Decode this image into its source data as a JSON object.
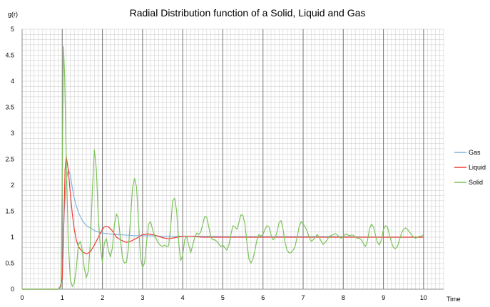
{
  "chart_data": {
    "type": "line",
    "title": "Radial Distribution function of a Solid, Liquid and Gas",
    "xlabel": "Time",
    "ylabel": "g(r)",
    "xlim": [
      0,
      10.5
    ],
    "ylim": [
      0,
      5
    ],
    "xticks": [
      0,
      1,
      2,
      3,
      4,
      5,
      6,
      7,
      8,
      9,
      10
    ],
    "yticks": [
      0,
      0.5,
      1,
      1.5,
      2,
      2.5,
      3,
      3.5,
      4,
      4.5,
      5
    ],
    "x_major_grid": [
      1,
      2,
      3,
      4,
      5,
      6,
      7,
      8,
      9,
      10
    ],
    "x_minor_step": 0.1,
    "y_minor_step": 0.1,
    "grid": true,
    "legend_position": "right",
    "colors": {
      "Gas": "#7fb6e0",
      "Liquid": "#ee3b30",
      "Solid": "#7cc35a",
      "grid_major": "#7f7f7f",
      "grid_minor": "#c8c8c8",
      "axis": "#8c8c8c"
    },
    "series": [
      {
        "name": "Gas",
        "color": "#7fb6e0",
        "points": [
          [
            0,
            0
          ],
          [
            0.9,
            0
          ],
          [
            0.95,
            0.02
          ],
          [
            1.0,
            0.3
          ],
          [
            1.05,
            1.5
          ],
          [
            1.1,
            2.1
          ],
          [
            1.15,
            2.3
          ],
          [
            1.2,
            2.2
          ],
          [
            1.25,
            1.95
          ],
          [
            1.3,
            1.75
          ],
          [
            1.35,
            1.6
          ],
          [
            1.4,
            1.48
          ],
          [
            1.5,
            1.32
          ],
          [
            1.6,
            1.22
          ],
          [
            1.7,
            1.18
          ],
          [
            1.8,
            1.13
          ],
          [
            1.9,
            1.1
          ],
          [
            2.0,
            1.08
          ],
          [
            2.2,
            1.06
          ],
          [
            2.4,
            1.05
          ],
          [
            2.6,
            1.04
          ],
          [
            2.8,
            1.03
          ],
          [
            3.0,
            1.03
          ],
          [
            3.5,
            1.02
          ],
          [
            4.0,
            1.02
          ],
          [
            4.5,
            1.02
          ],
          [
            5.0,
            1.01
          ],
          [
            6.0,
            1.01
          ],
          [
            7.0,
            1.01
          ],
          [
            8.0,
            1.01
          ],
          [
            9.0,
            1.0
          ],
          [
            10.0,
            1.0
          ]
        ]
      },
      {
        "name": "Liquid",
        "color": "#ee3b30",
        "points": [
          [
            0,
            0
          ],
          [
            0.9,
            0
          ],
          [
            0.95,
            0.05
          ],
          [
            1.0,
            0.2
          ],
          [
            1.03,
            1.0
          ],
          [
            1.07,
            2.3
          ],
          [
            1.1,
            2.55
          ],
          [
            1.15,
            2.3
          ],
          [
            1.2,
            1.85
          ],
          [
            1.25,
            1.45
          ],
          [
            1.3,
            1.15
          ],
          [
            1.35,
            0.95
          ],
          [
            1.4,
            0.82
          ],
          [
            1.5,
            0.72
          ],
          [
            1.6,
            0.68
          ],
          [
            1.7,
            0.72
          ],
          [
            1.8,
            0.85
          ],
          [
            1.9,
            1.0
          ],
          [
            2.0,
            1.15
          ],
          [
            2.05,
            1.2
          ],
          [
            2.15,
            1.2
          ],
          [
            2.25,
            1.12
          ],
          [
            2.35,
            1.0
          ],
          [
            2.5,
            0.93
          ],
          [
            2.6,
            0.9
          ],
          [
            2.7,
            0.92
          ],
          [
            2.85,
            0.98
          ],
          [
            3.0,
            1.05
          ],
          [
            3.15,
            1.06
          ],
          [
            3.3,
            1.04
          ],
          [
            3.5,
            0.99
          ],
          [
            3.65,
            0.97
          ],
          [
            3.8,
            0.99
          ],
          [
            4.0,
            1.02
          ],
          [
            4.2,
            1.02
          ],
          [
            4.5,
            1.0
          ],
          [
            5.0,
            1.0
          ],
          [
            6.0,
            1.0
          ],
          [
            7.0,
            1.0
          ],
          [
            8.0,
            1.0
          ],
          [
            9.0,
            1.0
          ],
          [
            10.0,
            1.0
          ]
        ]
      },
      {
        "name": "Solid",
        "color": "#7cc35a",
        "points": [
          [
            0,
            0
          ],
          [
            0.9,
            0
          ],
          [
            0.97,
            0.05
          ],
          [
            1.0,
            2.3
          ],
          [
            1.03,
            4.67
          ],
          [
            1.06,
            4.1
          ],
          [
            1.1,
            2.5
          ],
          [
            1.15,
            0.9
          ],
          [
            1.2,
            0.2
          ],
          [
            1.25,
            0.05
          ],
          [
            1.3,
            0.12
          ],
          [
            1.35,
            0.4
          ],
          [
            1.4,
            0.85
          ],
          [
            1.45,
            0.92
          ],
          [
            1.5,
            0.75
          ],
          [
            1.55,
            0.4
          ],
          [
            1.6,
            0.22
          ],
          [
            1.65,
            0.35
          ],
          [
            1.7,
            0.9
          ],
          [
            1.75,
            1.9
          ],
          [
            1.8,
            2.68
          ],
          [
            1.85,
            2.3
          ],
          [
            1.9,
            1.35
          ],
          [
            1.95,
            0.8
          ],
          [
            2.0,
            0.52
          ],
          [
            2.05,
            0.9
          ],
          [
            2.1,
            0.97
          ],
          [
            2.15,
            0.75
          ],
          [
            2.2,
            0.62
          ],
          [
            2.25,
            0.8
          ],
          [
            2.3,
            1.25
          ],
          [
            2.35,
            1.45
          ],
          [
            2.4,
            1.35
          ],
          [
            2.45,
            0.95
          ],
          [
            2.5,
            0.6
          ],
          [
            2.55,
            0.5
          ],
          [
            2.6,
            0.52
          ],
          [
            2.65,
            0.8
          ],
          [
            2.7,
            1.35
          ],
          [
            2.75,
            1.95
          ],
          [
            2.8,
            2.13
          ],
          [
            2.85,
            1.97
          ],
          [
            2.9,
            1.3
          ],
          [
            2.95,
            0.6
          ],
          [
            3.0,
            0.42
          ],
          [
            3.05,
            0.5
          ],
          [
            3.1,
            0.9
          ],
          [
            3.15,
            1.25
          ],
          [
            3.2,
            1.3
          ],
          [
            3.25,
            1.15
          ],
          [
            3.3,
            1.02
          ],
          [
            3.35,
            0.95
          ],
          [
            3.4,
            0.88
          ],
          [
            3.45,
            0.84
          ],
          [
            3.5,
            0.82
          ],
          [
            3.55,
            0.85
          ],
          [
            3.6,
            0.82
          ],
          [
            3.65,
            0.83
          ],
          [
            3.7,
            1.2
          ],
          [
            3.75,
            1.7
          ],
          [
            3.8,
            1.75
          ],
          [
            3.85,
            1.5
          ],
          [
            3.9,
            0.9
          ],
          [
            3.95,
            0.55
          ],
          [
            4.0,
            0.65
          ],
          [
            4.05,
            0.95
          ],
          [
            4.1,
            1.02
          ],
          [
            4.15,
            0.85
          ],
          [
            4.2,
            0.7
          ],
          [
            4.25,
            0.85
          ],
          [
            4.3,
            1.0
          ],
          [
            4.35,
            1.08
          ],
          [
            4.4,
            1.05
          ],
          [
            4.45,
            1.1
          ],
          [
            4.5,
            1.25
          ],
          [
            4.55,
            1.4
          ],
          [
            4.6,
            1.38
          ],
          [
            4.65,
            1.2
          ],
          [
            4.7,
            1.0
          ],
          [
            4.75,
            0.95
          ],
          [
            4.8,
            0.95
          ],
          [
            4.85,
            0.92
          ],
          [
            4.9,
            0.87
          ],
          [
            4.95,
            0.82
          ],
          [
            5.0,
            0.85
          ],
          [
            5.05,
            0.8
          ],
          [
            5.1,
            0.75
          ],
          [
            5.15,
            0.85
          ],
          [
            5.2,
            1.05
          ],
          [
            5.25,
            1.22
          ],
          [
            5.3,
            1.2
          ],
          [
            5.35,
            1.15
          ],
          [
            5.4,
            1.28
          ],
          [
            5.45,
            1.43
          ],
          [
            5.5,
            1.42
          ],
          [
            5.55,
            1.25
          ],
          [
            5.6,
            0.9
          ],
          [
            5.65,
            0.58
          ],
          [
            5.7,
            0.5
          ],
          [
            5.75,
            0.58
          ],
          [
            5.8,
            0.75
          ],
          [
            5.85,
            0.95
          ],
          [
            5.9,
            1.05
          ],
          [
            5.95,
            1.02
          ],
          [
            6.0,
            1.05
          ],
          [
            6.05,
            1.15
          ],
          [
            6.1,
            1.22
          ],
          [
            6.15,
            1.2
          ],
          [
            6.2,
            1.05
          ],
          [
            6.25,
            0.95
          ],
          [
            6.3,
            0.98
          ],
          [
            6.35,
            1.1
          ],
          [
            6.4,
            1.28
          ],
          [
            6.45,
            1.32
          ],
          [
            6.5,
            1.15
          ],
          [
            6.55,
            0.9
          ],
          [
            6.6,
            0.75
          ],
          [
            6.65,
            0.7
          ],
          [
            6.7,
            0.7
          ],
          [
            6.75,
            0.75
          ],
          [
            6.8,
            0.82
          ],
          [
            6.85,
            1.0
          ],
          [
            6.9,
            1.2
          ],
          [
            6.95,
            1.3
          ],
          [
            7.0,
            1.25
          ],
          [
            7.05,
            1.2
          ],
          [
            7.1,
            1.12
          ],
          [
            7.15,
            1.0
          ],
          [
            7.2,
            0.92
          ],
          [
            7.25,
            0.95
          ],
          [
            7.3,
            1.0
          ],
          [
            7.35,
            1.05
          ],
          [
            7.4,
            1.0
          ],
          [
            7.45,
            0.92
          ],
          [
            7.5,
            0.86
          ],
          [
            7.55,
            0.9
          ],
          [
            7.6,
            0.95
          ],
          [
            7.65,
            1.02
          ],
          [
            7.7,
            1.03
          ],
          [
            7.75,
            1.05
          ],
          [
            7.8,
            1.07
          ],
          [
            7.85,
            1.05
          ],
          [
            7.9,
            1.0
          ],
          [
            7.95,
            0.98
          ],
          [
            8.0,
            1.02
          ],
          [
            8.05,
            1.06
          ],
          [
            8.1,
            1.05
          ],
          [
            8.15,
            1.03
          ],
          [
            8.2,
            1.04
          ],
          [
            8.25,
            1.04
          ],
          [
            8.3,
            1.0
          ],
          [
            8.35,
            0.98
          ],
          [
            8.4,
            0.98
          ],
          [
            8.45,
            0.95
          ],
          [
            8.5,
            0.88
          ],
          [
            8.55,
            0.82
          ],
          [
            8.6,
            0.92
          ],
          [
            8.65,
            1.15
          ],
          [
            8.7,
            1.25
          ],
          [
            8.75,
            1.2
          ],
          [
            8.8,
            1.05
          ],
          [
            8.85,
            0.9
          ],
          [
            8.9,
            0.85
          ],
          [
            8.95,
            0.95
          ],
          [
            9.0,
            1.15
          ],
          [
            9.05,
            1.22
          ],
          [
            9.1,
            1.2
          ],
          [
            9.15,
            1.05
          ],
          [
            9.2,
            0.9
          ],
          [
            9.25,
            0.8
          ],
          [
            9.3,
            0.78
          ],
          [
            9.35,
            0.82
          ],
          [
            9.4,
            0.95
          ],
          [
            9.45,
            1.08
          ],
          [
            9.5,
            1.15
          ],
          [
            9.55,
            1.18
          ],
          [
            9.6,
            1.15
          ],
          [
            9.65,
            1.1
          ],
          [
            9.7,
            1.05
          ],
          [
            9.75,
            1.0
          ],
          [
            9.8,
            0.98
          ],
          [
            9.85,
            1.0
          ],
          [
            9.9,
            1.02
          ],
          [
            9.95,
            1.02
          ],
          [
            10.0,
            1.05
          ]
        ]
      }
    ]
  }
}
